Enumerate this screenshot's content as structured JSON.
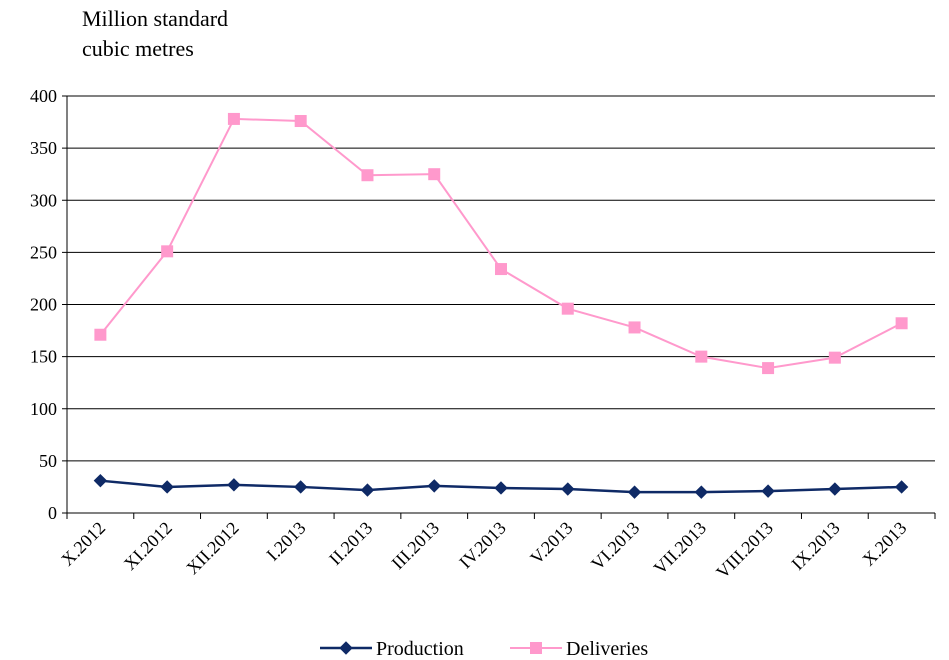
{
  "chart_data": {
    "type": "line",
    "title": "",
    "ylabel_lines": [
      "Million standard",
      "cubic metres"
    ],
    "xlabel": "",
    "ylim": [
      0,
      400
    ],
    "yticks": [
      0,
      50,
      100,
      150,
      200,
      250,
      300,
      350,
      400
    ],
    "categories": [
      "X.2012",
      "XI.2012",
      "XII.2012",
      "I.2013",
      "II.2013",
      "III.2013",
      "IV.2013",
      "V.2013",
      "VI.2013",
      "VII.2013",
      "VIII.2013",
      "IX.2013",
      "X.2013"
    ],
    "grid": "horizontal",
    "legend_position": "bottom",
    "series": [
      {
        "name": "Production",
        "color": "#0f2a66",
        "marker": "diamond",
        "values": [
          31,
          25,
          27,
          25,
          22,
          26,
          24,
          23,
          20,
          20,
          21,
          23,
          25
        ]
      },
      {
        "name": "Deliveries",
        "color": "#ff99cc",
        "marker": "square",
        "values": [
          171,
          251,
          378,
          376,
          324,
          325,
          234,
          196,
          178,
          150,
          139,
          149,
          182
        ]
      }
    ]
  }
}
